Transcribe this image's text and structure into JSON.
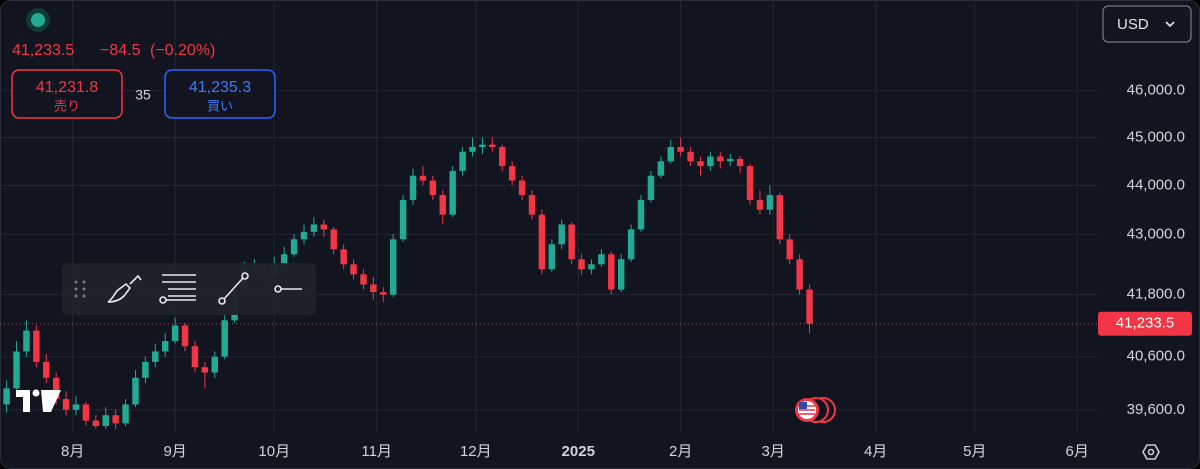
{
  "quote": {
    "last": "41,233.5",
    "change": "−84.5",
    "change_pct": "(−0.20%)"
  },
  "sell": {
    "price": "41,231.8",
    "label": "売り"
  },
  "spread": "35",
  "buy": {
    "price": "41,235.3",
    "label": "買い"
  },
  "currency": "USD",
  "chart_data": {
    "type": "candlestick",
    "log_scale": true,
    "grid": true,
    "up_color": "#22ab94",
    "down_color": "#f23645",
    "ylim": [
      39190,
      48000
    ],
    "yticks": [
      {
        "value": 39600,
        "label": "39,600.0"
      },
      {
        "value": 40600,
        "label": "40,600.0"
      },
      {
        "value": 41800,
        "label": "41,800.0"
      },
      {
        "value": 43000,
        "label": "43,000.0"
      },
      {
        "value": 44000,
        "label": "44,000.0"
      },
      {
        "value": 45000,
        "label": "45,000.0"
      },
      {
        "value": 46000,
        "label": "46,000.0"
      }
    ],
    "xlim": [
      -22,
      310
    ],
    "xticks": [
      {
        "value": 0,
        "label": "8月"
      },
      {
        "value": 31,
        "label": "9月"
      },
      {
        "value": 61,
        "label": "10月"
      },
      {
        "value": 92,
        "label": "11月"
      },
      {
        "value": 122,
        "label": "12月"
      },
      {
        "value": 153,
        "label": "2025"
      },
      {
        "value": 184,
        "label": "2月"
      },
      {
        "value": 212,
        "label": "3月"
      },
      {
        "value": 243,
        "label": "4月"
      },
      {
        "value": 273,
        "label": "5月"
      },
      {
        "value": 304,
        "label": "6月"
      }
    ],
    "price_line": {
      "value": 41233.5,
      "label": "41,233.5"
    },
    "x": [
      -20,
      -17,
      -14,
      -11,
      -8,
      -5,
      -2,
      1,
      4,
      7,
      10,
      13,
      16,
      19,
      22,
      25,
      28,
      31,
      34,
      37,
      40,
      43,
      46,
      49,
      52,
      55,
      58,
      61,
      64,
      67,
      70,
      73,
      76,
      79,
      82,
      85,
      88,
      91,
      94,
      97,
      100,
      103,
      106,
      109,
      112,
      115,
      118,
      121,
      124,
      127,
      130,
      133,
      136,
      139,
      142,
      145,
      148,
      151,
      154,
      157,
      160,
      163,
      166,
      169,
      172,
      175,
      178,
      181,
      184,
      187,
      190,
      193,
      196,
      199,
      202,
      205,
      208,
      211,
      214,
      217,
      220,
      223
    ],
    "ohlc": [
      [
        39700,
        40150,
        39550,
        40000
      ],
      [
        40000,
        40900,
        39950,
        40700
      ],
      [
        40700,
        41300,
        40600,
        41100
      ],
      [
        41100,
        41200,
        40400,
        40500
      ],
      [
        40500,
        40650,
        40100,
        40200
      ],
      [
        40200,
        40300,
        39700,
        39800
      ],
      [
        39800,
        39950,
        39500,
        39600
      ],
      [
        39600,
        39850,
        39500,
        39700
      ],
      [
        39700,
        39750,
        39300,
        39400
      ],
      [
        39400,
        39500,
        39250,
        39300
      ],
      [
        39300,
        39650,
        39250,
        39500
      ],
      [
        39500,
        39600,
        39250,
        39350
      ],
      [
        39350,
        39800,
        39300,
        39700
      ],
      [
        39700,
        40350,
        39650,
        40200
      ],
      [
        40200,
        40600,
        40100,
        40500
      ],
      [
        40500,
        40850,
        40400,
        40700
      ],
      [
        40700,
        41050,
        40600,
        40900
      ],
      [
        40900,
        41350,
        40850,
        41200
      ],
      [
        41200,
        41250,
        40700,
        40800
      ],
      [
        40800,
        40900,
        40300,
        40400
      ],
      [
        40400,
        40500,
        40000,
        40300
      ],
      [
        40300,
        40700,
        40200,
        40600
      ],
      [
        40600,
        41400,
        40550,
        41300
      ],
      [
        41300,
        42000,
        41250,
        41900
      ],
      [
        41900,
        42450,
        41850,
        42300
      ],
      [
        42300,
        42500,
        42150,
        42300
      ],
      [
        42300,
        42400,
        42050,
        42200
      ],
      [
        42200,
        42550,
        42100,
        42400
      ],
      [
        42400,
        42750,
        42300,
        42600
      ],
      [
        42600,
        43000,
        42550,
        42900
      ],
      [
        42900,
        43200,
        42800,
        43050
      ],
      [
        43050,
        43350,
        42950,
        43200
      ],
      [
        43200,
        43300,
        42950,
        43100
      ],
      [
        43100,
        43150,
        42600,
        42700
      ],
      [
        42700,
        42800,
        42300,
        42400
      ],
      [
        42400,
        42500,
        42100,
        42200
      ],
      [
        42200,
        42300,
        41900,
        42000
      ],
      [
        42000,
        42150,
        41700,
        41850
      ],
      [
        41850,
        41950,
        41650,
        41800
      ],
      [
        41800,
        43000,
        41750,
        42900
      ],
      [
        42900,
        43800,
        42850,
        43700
      ],
      [
        43700,
        44350,
        43600,
        44200
      ],
      [
        44200,
        44400,
        44000,
        44100
      ],
      [
        44100,
        44200,
        43700,
        43800
      ],
      [
        43800,
        43900,
        43200,
        43400
      ],
      [
        43400,
        44400,
        43350,
        44300
      ],
      [
        44300,
        44800,
        44200,
        44700
      ],
      [
        44700,
        45000,
        44600,
        44800
      ],
      [
        44800,
        45000,
        44650,
        44850
      ],
      [
        44850,
        45000,
        44700,
        44800
      ],
      [
        44800,
        44850,
        44300,
        44400
      ],
      [
        44400,
        44500,
        44000,
        44100
      ],
      [
        44100,
        44200,
        43700,
        43800
      ],
      [
        43800,
        43900,
        43300,
        43400
      ],
      [
        43400,
        43500,
        42200,
        42300
      ],
      [
        42300,
        42900,
        42250,
        42800
      ],
      [
        42800,
        43300,
        42700,
        43200
      ],
      [
        43200,
        43250,
        42400,
        42500
      ],
      [
        42500,
        42600,
        42200,
        42300
      ],
      [
        42300,
        42500,
        42200,
        42400
      ],
      [
        42400,
        42700,
        42350,
        42600
      ],
      [
        42600,
        42650,
        41800,
        41900
      ],
      [
        41900,
        42600,
        41850,
        42500
      ],
      [
        42500,
        43200,
        42450,
        43100
      ],
      [
        43100,
        43800,
        43050,
        43700
      ],
      [
        43700,
        44300,
        43650,
        44200
      ],
      [
        44200,
        44600,
        44150,
        44500
      ],
      [
        44500,
        44950,
        44450,
        44800
      ],
      [
        44800,
        45000,
        44600,
        44700
      ],
      [
        44700,
        44800,
        44400,
        44500
      ],
      [
        44500,
        44600,
        44200,
        44400
      ],
      [
        44400,
        44700,
        44300,
        44600
      ],
      [
        44600,
        44700,
        44350,
        44500
      ],
      [
        44500,
        44650,
        44400,
        44550
      ],
      [
        44550,
        44600,
        44250,
        44400
      ],
      [
        44400,
        44450,
        43600,
        43700
      ],
      [
        43700,
        43900,
        43400,
        43500
      ],
      [
        43500,
        44000,
        43400,
        43800
      ],
      [
        43800,
        43850,
        42800,
        42900
      ],
      [
        42900,
        43000,
        42400,
        42500
      ],
      [
        42500,
        42600,
        41800,
        41900
      ],
      [
        41900,
        42000,
        41050,
        41233.5
      ]
    ]
  }
}
